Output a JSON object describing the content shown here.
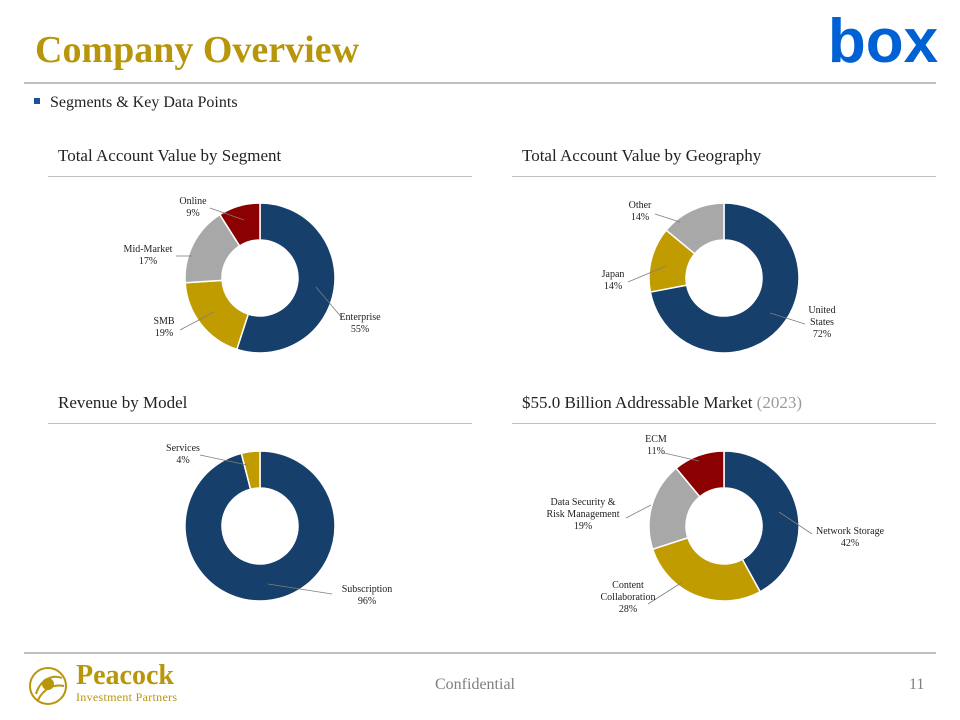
{
  "header": {
    "title": "Company Overview",
    "bullet": "Segments & Key Data Points"
  },
  "logo": {
    "text": "box",
    "color": "#0061d5"
  },
  "colors": {
    "navy": "#173f6b",
    "gold": "#c09c00",
    "gray": "#a8a8a8",
    "darkred": "#8b0000",
    "title_gold": "#b8960c"
  },
  "chart_data": [
    {
      "type": "pie",
      "subtype": "donut",
      "title": "Total Account Value by Segment",
      "slices": [
        {
          "label": "Enterprise",
          "value": 55,
          "display": "55%",
          "color": "#173f6b"
        },
        {
          "label": "SMB",
          "value": 19,
          "display": "19%",
          "color": "#c09c00"
        },
        {
          "label": "Mid-Market",
          "value": 17,
          "display": "17%",
          "color": "#a8a8a8"
        },
        {
          "label": "Online",
          "value": 9,
          "display": "9%",
          "color": "#8b0000"
        }
      ]
    },
    {
      "type": "pie",
      "subtype": "donut",
      "title": "Total Account Value by Geography",
      "slices": [
        {
          "label": "United States",
          "value": 72,
          "display": "72%",
          "color": "#173f6b"
        },
        {
          "label": "Japan",
          "value": 14,
          "display": "14%",
          "color": "#c09c00"
        },
        {
          "label": "Other",
          "value": 14,
          "display": "14%",
          "color": "#a8a8a8"
        }
      ]
    },
    {
      "type": "pie",
      "subtype": "donut",
      "title": "Revenue by Model",
      "slices": [
        {
          "label": "Subscription",
          "value": 96,
          "display": "96%",
          "color": "#173f6b"
        },
        {
          "label": "Services",
          "value": 4,
          "display": "4%",
          "color": "#c09c00"
        }
      ]
    },
    {
      "type": "pie",
      "subtype": "donut",
      "title": "$55.0 Billion Addressable Market",
      "title_suffix": "(2023)",
      "slices": [
        {
          "label": "Network Storage",
          "value": 42,
          "display": "42%",
          "color": "#173f6b"
        },
        {
          "label": "Content Collaboration",
          "value": 28,
          "display": "28%",
          "color": "#c09c00"
        },
        {
          "label": "Data Security & Risk Management",
          "value": 19,
          "display": "19%",
          "color": "#a8a8a8"
        },
        {
          "label": "ECM",
          "value": 11,
          "display": "11%",
          "color": "#8b0000"
        }
      ]
    }
  ],
  "footer": {
    "brand_name": "Peacock",
    "brand_sub": "Investment Partners",
    "confidential": "Confidential",
    "page_number": "11"
  }
}
